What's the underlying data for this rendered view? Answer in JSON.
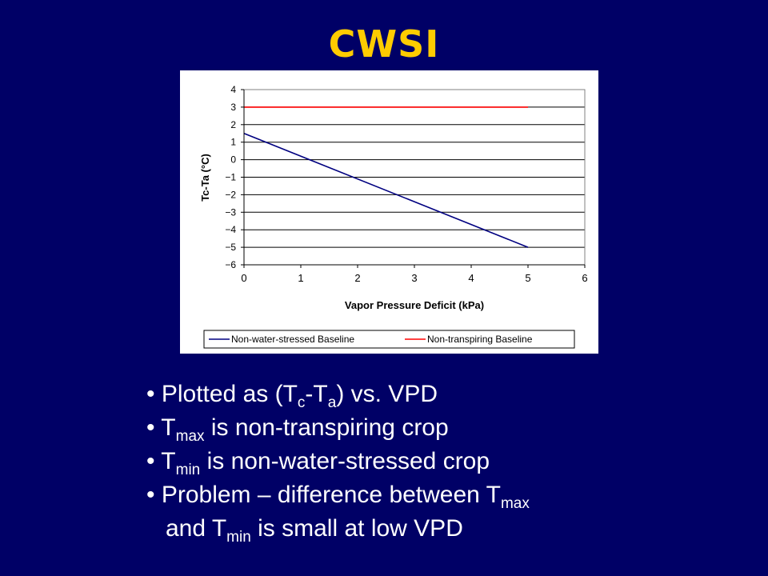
{
  "slide": {
    "title": "CWSI"
  },
  "bullets": {
    "b1": {
      "prefix": "• Plotted as (T",
      "sub1": "c",
      "mid": "-T",
      "sub2": "a",
      "suffix": ") vs. VPD"
    },
    "b2": {
      "prefix": "• T",
      "sub": "max",
      "suffix": " is non-transpiring crop"
    },
    "b3": {
      "prefix": "• T",
      "sub": "min",
      "suffix": " is non-water-stressed crop"
    },
    "b4": {
      "prefix": "• Problem – difference between T",
      "sub": "max"
    },
    "b5": {
      "prefix": "and T",
      "sub": "min",
      "suffix": " is small at low VPD"
    }
  },
  "chart_data": {
    "type": "line",
    "xlabel": "Vapor Pressure Deficit (kPa)",
    "ylabel": "Tc-Ta (°C)",
    "xlim": [
      0,
      6
    ],
    "ylim": [
      -6,
      4
    ],
    "x_ticks": [
      0,
      1,
      2,
      3,
      4,
      5,
      6
    ],
    "y_ticks": [
      4,
      3,
      2,
      1,
      0,
      -1,
      -2,
      -3,
      -4,
      -5,
      -6
    ],
    "grid": "horizontal",
    "legend_position": "bottom",
    "series": [
      {
        "name": "Non-water-stressed Baseline",
        "color": "#000080",
        "x": [
          0,
          5
        ],
        "y": [
          1.5,
          -5
        ]
      },
      {
        "name": "Non-transpiring Baseline",
        "color": "#ff0000",
        "x": [
          0,
          5
        ],
        "y": [
          3,
          3
        ]
      }
    ]
  }
}
